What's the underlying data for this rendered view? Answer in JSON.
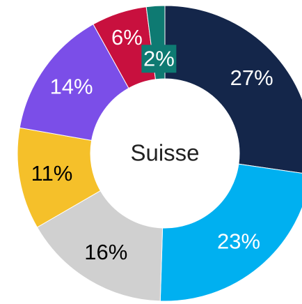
{
  "chart_data": {
    "type": "donut",
    "center_label": "Suisse",
    "values": [
      27,
      23,
      16,
      11,
      14,
      6,
      2
    ],
    "value_labels": [
      "27%",
      "23%",
      "16%",
      "11%",
      "14%",
      "6%",
      "2%"
    ],
    "colors": [
      "#14264a",
      "#00b0f0",
      "#d0d0d0",
      "#f5c02a",
      "#7b4ee8",
      "#c8103e",
      "#0e7a72"
    ],
    "label_colors": [
      "#ffffff",
      "#ffffff",
      "#000000",
      "#000000",
      "#ffffff",
      "#ffffff",
      "#ffffff"
    ]
  }
}
